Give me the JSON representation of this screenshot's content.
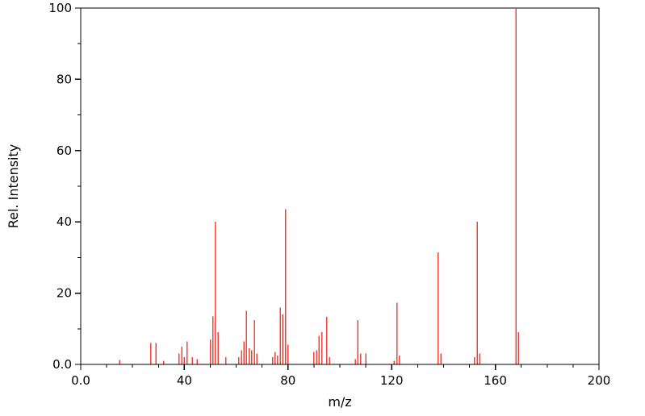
{
  "figure": {
    "background": "#ffffff"
  },
  "chart_data": {
    "type": "bar",
    "variant": "mass-spectrum-stick-plot",
    "title": "",
    "xlabel": "m/z",
    "ylabel": "Rel. Intensity",
    "xlim": [
      0,
      200
    ],
    "ylim": [
      0,
      100
    ],
    "grid": false,
    "legend": "none",
    "axis_color": "#000000",
    "stick_color": "#f0433a",
    "x_tick_values": [
      0,
      40,
      80,
      120,
      160,
      200
    ],
    "x_tick_labels": [
      "0.0",
      "40",
      "80",
      "120",
      "160",
      "200"
    ],
    "y_tick_values": [
      0,
      20,
      40,
      60,
      80,
      100
    ],
    "y_tick_labels": [
      "0.0",
      "20",
      "40",
      "60",
      "80",
      "100"
    ],
    "x_minor_step": 10,
    "y_minor_step": 10,
    "peaks": [
      [
        15,
        1.2
      ],
      [
        27,
        6
      ],
      [
        29,
        6
      ],
      [
        32,
        1
      ],
      [
        38,
        3
      ],
      [
        39,
        5
      ],
      [
        40,
        2
      ],
      [
        41,
        6.5
      ],
      [
        43,
        2
      ],
      [
        45,
        1.5
      ],
      [
        50,
        7
      ],
      [
        51,
        13.5
      ],
      [
        52,
        40
      ],
      [
        53,
        9
      ],
      [
        56,
        2
      ],
      [
        61,
        2
      ],
      [
        62,
        4
      ],
      [
        63,
        6.5
      ],
      [
        64,
        15
      ],
      [
        65,
        4.5
      ],
      [
        66,
        4
      ],
      [
        67,
        12.5
      ],
      [
        68,
        3
      ],
      [
        74,
        2
      ],
      [
        75,
        3.5
      ],
      [
        76,
        2.5
      ],
      [
        77,
        16
      ],
      [
        78,
        14
      ],
      [
        79,
        43.5
      ],
      [
        80,
        5.5
      ],
      [
        90,
        3.5
      ],
      [
        91,
        4
      ],
      [
        92,
        8
      ],
      [
        93,
        9
      ],
      [
        95,
        13.3
      ],
      [
        96,
        2
      ],
      [
        106,
        1.5
      ],
      [
        107,
        12.5
      ],
      [
        108,
        3
      ],
      [
        110,
        3
      ],
      [
        121,
        1
      ],
      [
        122,
        17.3
      ],
      [
        123,
        2.5
      ],
      [
        138,
        31.5
      ],
      [
        139,
        3
      ],
      [
        152,
        2
      ],
      [
        153,
        40
      ],
      [
        154,
        3
      ],
      [
        168,
        100
      ],
      [
        169,
        9
      ]
    ]
  }
}
